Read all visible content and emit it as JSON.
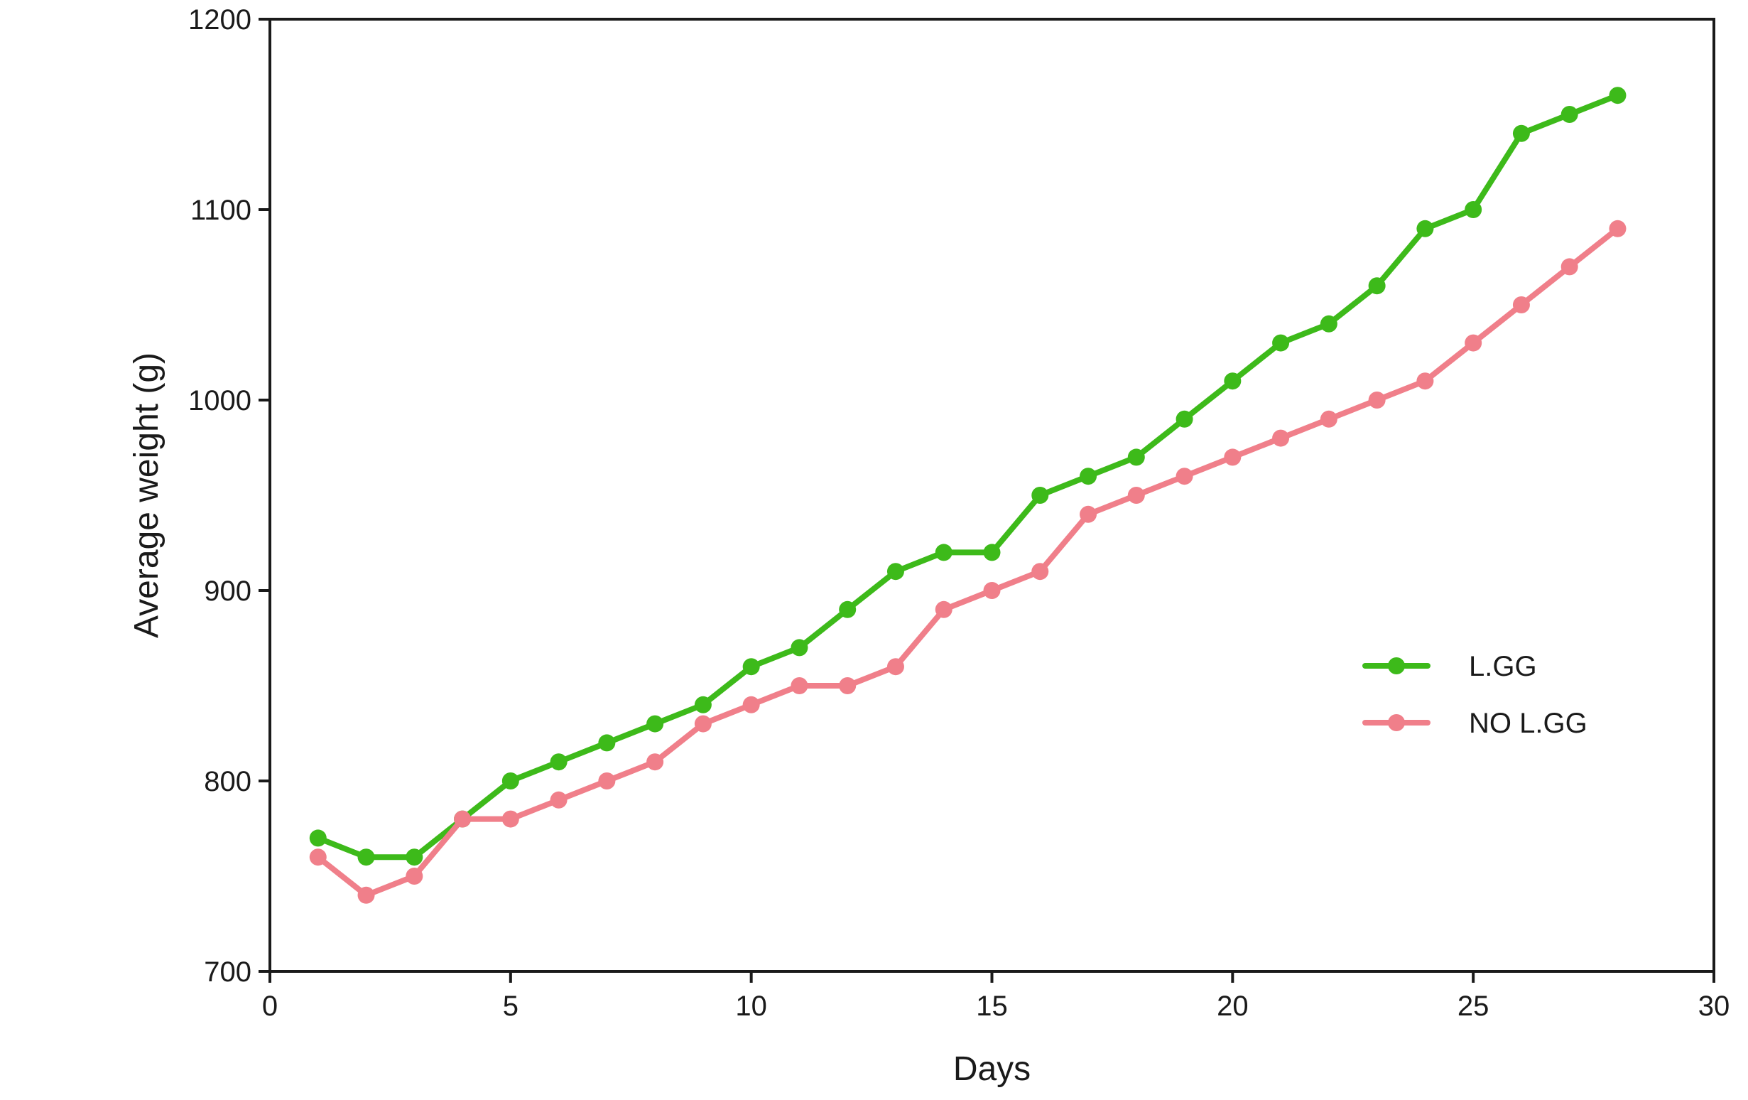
{
  "chart_data": {
    "type": "line",
    "title": "",
    "xlabel": "Days",
    "ylabel": "Average weight (g)",
    "xlim": [
      0,
      30
    ],
    "ylim": [
      700,
      1200
    ],
    "xticks": [
      0,
      5,
      10,
      15,
      20,
      25,
      30
    ],
    "yticks": [
      700,
      800,
      900,
      1000,
      1100,
      1200
    ],
    "grid": false,
    "legend_position": "right",
    "x": [
      1,
      2,
      3,
      4,
      5,
      6,
      7,
      8,
      9,
      10,
      11,
      12,
      13,
      14,
      15,
      16,
      17,
      18,
      19,
      20,
      21,
      22,
      23,
      24,
      25,
      26,
      27,
      28
    ],
    "series": [
      {
        "name": "L.GG",
        "color": "#3dba1a",
        "values": [
          770,
          760,
          760,
          780,
          800,
          810,
          820,
          830,
          840,
          860,
          870,
          890,
          910,
          920,
          920,
          950,
          960,
          970,
          990,
          1010,
          1030,
          1040,
          1060,
          1090,
          1100,
          1140,
          1150,
          1160
        ]
      },
      {
        "name": "NO L.GG",
        "color": "#f07f8a",
        "values": [
          760,
          740,
          750,
          780,
          780,
          790,
          800,
          810,
          830,
          840,
          850,
          850,
          860,
          890,
          900,
          910,
          940,
          950,
          960,
          970,
          980,
          990,
          1000,
          1010,
          1030,
          1050,
          1070,
          1090
        ]
      }
    ]
  }
}
